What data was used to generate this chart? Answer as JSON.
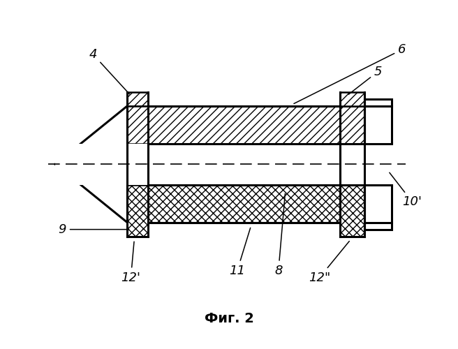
{
  "title": "Фиг. 2",
  "bg_color": "#ffffff",
  "line_color": "#000000"
}
